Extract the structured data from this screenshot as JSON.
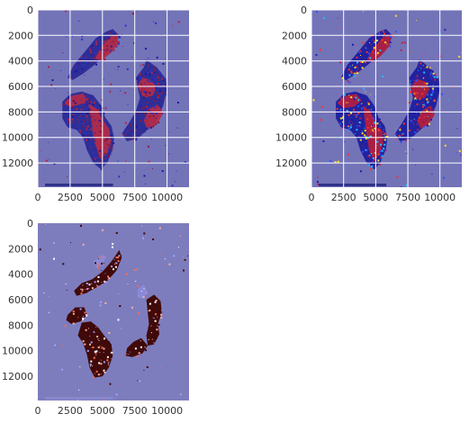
{
  "chart_data": [
    {
      "type": "heatmap",
      "panel": "top-left",
      "colormap": "seismic",
      "background_color": "#7373b8",
      "grid": true,
      "x_range": [
        0,
        11700
      ],
      "y_range": [
        0,
        13900
      ],
      "y_inverted": true,
      "x_ticks": [
        0,
        2500,
        5000,
        7500,
        10000
      ],
      "x_tick_labels": [
        "0",
        "2500",
        "5000",
        "7500",
        "10000"
      ],
      "y_ticks": [
        0,
        2000,
        4000,
        6000,
        8000,
        10000,
        12000
      ],
      "y_tick_labels": [
        "0",
        "2000",
        "4000",
        "6000",
        "8000",
        "10000",
        "12000"
      ],
      "tissue_regions": [
        {
          "points": [
            [
              2300,
              5300
            ],
            [
              2800,
              4300
            ],
            [
              3700,
              3200
            ],
            [
              4500,
              2200
            ],
            [
              5300,
              1700
            ],
            [
              5800,
              1500
            ],
            [
              6300,
              2000
            ],
            [
              6000,
              2800
            ],
            [
              5200,
              3600
            ],
            [
              4400,
              4300
            ],
            [
              3500,
              5000
            ],
            [
              2700,
              5500
            ]
          ],
          "fill": "#2a2a96"
        },
        {
          "points": [
            [
              4400,
              3800
            ],
            [
              5000,
              2800
            ],
            [
              5600,
              2100
            ],
            [
              6200,
              1900
            ],
            [
              6200,
              2700
            ],
            [
              5600,
              3400
            ],
            [
              4900,
              4000
            ]
          ],
          "fill": "#b22b49"
        },
        {
          "points": [
            [
              1900,
              7200
            ],
            [
              2500,
              6600
            ],
            [
              3400,
              6400
            ],
            [
              4300,
              6700
            ],
            [
              4900,
              7500
            ],
            [
              5200,
              8400
            ],
            [
              5700,
              9100
            ],
            [
              5900,
              10000
            ],
            [
              5800,
              10900
            ],
            [
              5400,
              11900
            ],
            [
              4900,
              12500
            ],
            [
              4300,
              12000
            ],
            [
              3800,
              11000
            ],
            [
              3500,
              10000
            ],
            [
              3000,
              9400
            ],
            [
              2300,
              9200
            ],
            [
              1900,
              8500
            ]
          ],
          "fill": "#2a2a96"
        },
        {
          "points": [
            [
              2000,
              7300
            ],
            [
              2700,
              6700
            ],
            [
              3500,
              6600
            ],
            [
              3900,
              7000
            ],
            [
              3300,
              7400
            ],
            [
              2500,
              7600
            ]
          ],
          "fill": "#b22b49"
        },
        {
          "points": [
            [
              3900,
              7300
            ],
            [
              4600,
              7800
            ],
            [
              5000,
              8600
            ],
            [
              5500,
              9300
            ],
            [
              5700,
              10200
            ],
            [
              5400,
              11200
            ],
            [
              4900,
              11800
            ],
            [
              4600,
              11000
            ],
            [
              4300,
              10000
            ],
            [
              4200,
              9000
            ]
          ],
          "fill": "#b22b49"
        },
        {
          "points": [
            [
              7600,
              5300
            ],
            [
              8200,
              4500
            ],
            [
              8400,
              3900
            ],
            [
              9200,
              4500
            ],
            [
              9900,
              5400
            ],
            [
              10000,
              6200
            ],
            [
              9700,
              7500
            ],
            [
              9300,
              8400
            ],
            [
              8600,
              9300
            ],
            [
              7700,
              10100
            ],
            [
              6900,
              10300
            ],
            [
              6500,
              9700
            ],
            [
              7100,
              8800
            ],
            [
              7600,
              7900
            ],
            [
              7900,
              6900
            ],
            [
              7700,
              6000
            ]
          ],
          "fill": "#2a2a96"
        },
        {
          "points": [
            [
              7700,
              6000
            ],
            [
              8100,
              5300
            ],
            [
              8700,
              5500
            ],
            [
              9200,
              6000
            ],
            [
              8900,
              6700
            ],
            [
              8200,
              6900
            ]
          ],
          "fill": "#b22b49"
        },
        {
          "points": [
            [
              8600,
              7800
            ],
            [
              9300,
              7400
            ],
            [
              9700,
              8100
            ],
            [
              9200,
              9000
            ],
            [
              8500,
              9400
            ],
            [
              8200,
              8700
            ]
          ],
          "fill": "#b22b49"
        }
      ]
    },
    {
      "type": "heatmap",
      "panel": "top-right",
      "colormap": "jet",
      "background_color": "#7373b8",
      "grid": true,
      "x_range": [
        0,
        11700
      ],
      "y_range": [
        0,
        13900
      ],
      "y_inverted": true,
      "x_ticks": [
        0,
        2500,
        5000,
        7500,
        10000
      ],
      "x_tick_labels": [
        "0",
        "2500",
        "5000",
        "7500",
        "10000"
      ],
      "y_ticks": [
        0,
        2000,
        4000,
        6000,
        8000,
        10000,
        12000
      ],
      "y_tick_labels": [
        "0",
        "2000",
        "4000",
        "6000",
        "8000",
        "10000",
        "12000"
      ],
      "tissue_regions": [
        {
          "points": [
            [
              2300,
              5300
            ],
            [
              2800,
              4300
            ],
            [
              3700,
              3200
            ],
            [
              4500,
              2200
            ],
            [
              5300,
              1700
            ],
            [
              5800,
              1500
            ],
            [
              6300,
              2000
            ],
            [
              6000,
              2800
            ],
            [
              5200,
              3600
            ],
            [
              4400,
              4300
            ],
            [
              3500,
              5000
            ],
            [
              2700,
              5500
            ]
          ],
          "fill": "#1e1e9e"
        },
        {
          "points": [
            [
              4300,
              3900
            ],
            [
              4900,
              2900
            ],
            [
              5600,
              2100
            ],
            [
              6200,
              1900
            ],
            [
              6100,
              2800
            ],
            [
              5500,
              3500
            ],
            [
              4800,
              4100
            ]
          ],
          "fill": "#b02040"
        },
        {
          "points": [
            [
              1900,
              7200
            ],
            [
              2500,
              6600
            ],
            [
              3400,
              6400
            ],
            [
              4300,
              6700
            ],
            [
              4900,
              7500
            ],
            [
              5200,
              8400
            ],
            [
              5700,
              9100
            ],
            [
              5900,
              10000
            ],
            [
              5800,
              10900
            ],
            [
              5400,
              11900
            ],
            [
              4900,
              12500
            ],
            [
              4300,
              12000
            ],
            [
              3800,
              11000
            ],
            [
              3500,
              10000
            ],
            [
              3000,
              9400
            ],
            [
              2300,
              9200
            ],
            [
              1900,
              8500
            ]
          ],
          "fill": "#1e1e9e"
        },
        {
          "points": [
            [
              2000,
              7300
            ],
            [
              2700,
              6700
            ],
            [
              3500,
              6600
            ],
            [
              3900,
              7100
            ],
            [
              3300,
              7600
            ],
            [
              2500,
              7700
            ]
          ],
          "fill": "#b02040"
        },
        {
          "points": [
            [
              4000,
              7500
            ],
            [
              4600,
              8000
            ],
            [
              5000,
              8800
            ],
            [
              5500,
              9500
            ],
            [
              5600,
              10400
            ],
            [
              5300,
              11300
            ],
            [
              4900,
              11900
            ],
            [
              4500,
              11000
            ],
            [
              4300,
              10000
            ],
            [
              4200,
              9000
            ]
          ],
          "fill": "#b02040"
        },
        {
          "points": [
            [
              7600,
              5300
            ],
            [
              8200,
              4500
            ],
            [
              8400,
              3900
            ],
            [
              9200,
              4500
            ],
            [
              9900,
              5400
            ],
            [
              10000,
              6200
            ],
            [
              9700,
              7500
            ],
            [
              9300,
              8400
            ],
            [
              8600,
              9300
            ],
            [
              7700,
              10100
            ],
            [
              6900,
              10300
            ],
            [
              6500,
              9700
            ],
            [
              7100,
              8800
            ],
            [
              7600,
              7900
            ],
            [
              7900,
              6900
            ],
            [
              7700,
              6000
            ]
          ],
          "fill": "#1e1e9e"
        },
        {
          "points": [
            [
              7700,
              6100
            ],
            [
              8200,
              5400
            ],
            [
              8800,
              5600
            ],
            [
              9200,
              6200
            ],
            [
              8800,
              6900
            ],
            [
              8100,
              7000
            ]
          ],
          "fill": "#b02040"
        },
        {
          "points": [
            [
              8600,
              7900
            ],
            [
              9300,
              7500
            ],
            [
              9600,
              8200
            ],
            [
              9100,
              9000
            ],
            [
              8500,
              9300
            ],
            [
              8200,
              8700
            ]
          ],
          "fill": "#b02040"
        }
      ]
    },
    {
      "type": "heatmap",
      "panel": "bottom-left",
      "colormap": "diverging",
      "background_color": "#7d7dbe",
      "grid": false,
      "x_range": [
        0,
        11700
      ],
      "y_range": [
        0,
        13900
      ],
      "y_inverted": true,
      "x_ticks": [
        0,
        2500,
        5000,
        7500,
        10000
      ],
      "x_tick_labels": [
        "0",
        "2500",
        "5000",
        "7500",
        "10000"
      ],
      "y_ticks": [
        0,
        2000,
        4000,
        6000,
        8000,
        10000,
        12000
      ],
      "y_tick_labels": [
        "0",
        "2000",
        "4000",
        "6000",
        "8000",
        "10000",
        "12000"
      ],
      "tissue_regions": [
        {
          "points": [
            [
              2800,
              5300
            ],
            [
              3400,
              4700
            ],
            [
              4200,
              4400
            ],
            [
              5000,
              3800
            ],
            [
              5700,
              3000
            ],
            [
              6300,
              2100
            ],
            [
              6500,
              2700
            ],
            [
              6100,
              3700
            ],
            [
              5400,
              4500
            ],
            [
              4600,
              5000
            ],
            [
              3700,
              5500
            ],
            [
              3000,
              5700
            ]
          ],
          "fill": "#3d0400"
        },
        {
          "points": [
            [
              4300,
              3000
            ],
            [
              4900,
              2500
            ],
            [
              5300,
              2600
            ],
            [
              5000,
              3300
            ],
            [
              4500,
              3500
            ]
          ],
          "fill": "#8a8ad8"
        },
        {
          "points": [
            [
              2300,
              7200
            ],
            [
              2900,
              6600
            ],
            [
              3600,
              6600
            ],
            [
              3800,
              7200
            ],
            [
              3300,
              7700
            ],
            [
              2600,
              7900
            ],
            [
              2200,
              7600
            ]
          ],
          "fill": "#3d0400"
        },
        {
          "points": [
            [
              3400,
              7800
            ],
            [
              4100,
              7700
            ],
            [
              4700,
              8200
            ],
            [
              5200,
              8900
            ],
            [
              5700,
              9500
            ],
            [
              5800,
              10400
            ],
            [
              5500,
              11300
            ],
            [
              5000,
              12000
            ],
            [
              4400,
              12100
            ],
            [
              4000,
              11300
            ],
            [
              3800,
              10300
            ],
            [
              3500,
              9400
            ],
            [
              3100,
              8800
            ]
          ],
          "fill": "#3d0400"
        },
        {
          "points": [
            [
              6900,
              9800
            ],
            [
              7400,
              9300
            ],
            [
              8000,
              9000
            ],
            [
              8500,
              9600
            ],
            [
              8100,
              10200
            ],
            [
              7300,
              10500
            ],
            [
              6800,
              10400
            ]
          ],
          "fill": "#3d0400"
        },
        {
          "points": [
            [
              8400,
              6000
            ],
            [
              9000,
              5600
            ],
            [
              9500,
              6100
            ],
            [
              9600,
              7000
            ],
            [
              9300,
              7900
            ],
            [
              9400,
              8700
            ],
            [
              9000,
              9500
            ],
            [
              8500,
              9600
            ],
            [
              8400,
              8800
            ],
            [
              8600,
              7900
            ],
            [
              8500,
              7000
            ]
          ],
          "fill": "#3d0400"
        },
        {
          "points": [
            [
              7700,
              5200
            ],
            [
              8200,
              4800
            ],
            [
              8500,
              5400
            ],
            [
              8100,
              5900
            ],
            [
              7700,
              5800
            ]
          ],
          "fill": "#8a8ad8"
        }
      ]
    }
  ]
}
